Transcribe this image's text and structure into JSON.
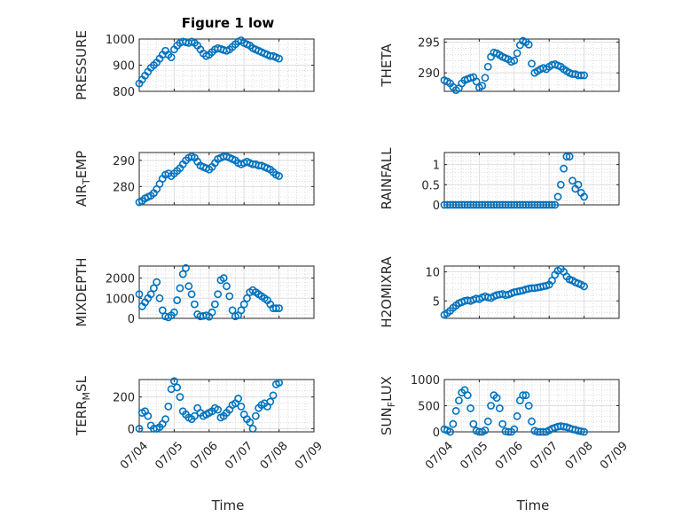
{
  "figure": {
    "title": "Figure 1 low",
    "xlabel": "Time"
  },
  "colors": {
    "marker": "#0072BD",
    "axis": "#262626",
    "grid_major": "#dedede",
    "grid_minor": "#c8c8c8"
  },
  "chart_data": [
    {
      "type": "scatter",
      "ylabel": "PRESSURE",
      "ylim": [
        800,
        1000
      ],
      "yticks": [
        "800",
        "900",
        "1000"
      ],
      "ytick_values": [
        800,
        900,
        1000
      ],
      "xlim": [
        "07/04",
        "07/09"
      ],
      "show_xticklabels": false,
      "grid": true,
      "marker": "circle",
      "x": [
        "07/04 00:00",
        "07/04 02:00",
        "07/04 04:00",
        "07/04 06:00",
        "07/04 08:00",
        "07/04 10:00",
        "07/04 12:00",
        "07/04 14:00",
        "07/04 16:00",
        "07/04 18:00",
        "07/04 20:00",
        "07/04 22:00",
        "07/05 00:00",
        "07/05 02:00",
        "07/05 04:00",
        "07/05 06:00",
        "07/05 08:00",
        "07/05 10:00",
        "07/05 12:00",
        "07/05 14:00",
        "07/05 16:00",
        "07/05 18:00",
        "07/05 20:00",
        "07/05 22:00",
        "07/06 00:00",
        "07/06 02:00",
        "07/06 04:00",
        "07/06 06:00",
        "07/06 08:00",
        "07/06 10:00",
        "07/06 12:00",
        "07/06 14:00",
        "07/06 16:00",
        "07/06 18:00",
        "07/06 20:00",
        "07/06 22:00",
        "07/07 00:00",
        "07/07 02:00",
        "07/07 04:00",
        "07/07 06:00",
        "07/07 08:00",
        "07/07 10:00",
        "07/07 12:00",
        "07/07 14:00",
        "07/07 16:00",
        "07/07 18:00",
        "07/07 20:00",
        "07/07 22:00",
        "07/08 00:00"
      ],
      "y": [
        830,
        845,
        860,
        875,
        890,
        900,
        910,
        925,
        940,
        955,
        940,
        930,
        960,
        975,
        985,
        990,
        988,
        985,
        990,
        985,
        975,
        960,
        945,
        935,
        940,
        950,
        960,
        965,
        962,
        958,
        955,
        960,
        970,
        980,
        990,
        995,
        985,
        980,
        975,
        965,
        960,
        955,
        950,
        945,
        940,
        935,
        935,
        930,
        925
      ]
    },
    {
      "type": "scatter",
      "ylabel": "THETA",
      "ylim": [
        287,
        295.5
      ],
      "yticks": [
        "290",
        "295"
      ],
      "ytick_values": [
        290,
        295
      ],
      "xlim": [
        "07/04",
        "07/09"
      ],
      "show_xticklabels": false,
      "grid": true,
      "marker": "circle",
      "x": [
        "07/04 00:00",
        "07/04 02:00",
        "07/04 04:00",
        "07/04 06:00",
        "07/04 08:00",
        "07/04 10:00",
        "07/04 12:00",
        "07/04 14:00",
        "07/04 16:00",
        "07/04 18:00",
        "07/04 20:00",
        "07/04 22:00",
        "07/05 00:00",
        "07/05 02:00",
        "07/05 04:00",
        "07/05 06:00",
        "07/05 08:00",
        "07/05 10:00",
        "07/05 12:00",
        "07/05 14:00",
        "07/05 16:00",
        "07/05 18:00",
        "07/05 20:00",
        "07/05 22:00",
        "07/06 00:00",
        "07/06 02:00",
        "07/06 04:00",
        "07/06 06:00",
        "07/06 08:00",
        "07/06 10:00",
        "07/06 12:00",
        "07/06 14:00",
        "07/06 16:00",
        "07/06 18:00",
        "07/06 20:00",
        "07/06 22:00",
        "07/07 00:00",
        "07/07 02:00",
        "07/07 04:00",
        "07/07 06:00",
        "07/07 08:00",
        "07/07 10:00",
        "07/07 12:00",
        "07/07 14:00",
        "07/07 16:00",
        "07/07 18:00",
        "07/07 20:00",
        "07/07 22:00",
        "07/08 00:00"
      ],
      "y": [
        288.8,
        288.6,
        288.3,
        287.7,
        287.2,
        287.5,
        288.3,
        288.8,
        289.0,
        289.2,
        289.3,
        288.6,
        287.6,
        287.9,
        289.2,
        291.0,
        292.6,
        293.3,
        293.2,
        292.9,
        292.6,
        292.4,
        292.2,
        291.8,
        292.0,
        293.2,
        294.5,
        295.2,
        295.0,
        294.6,
        291.5,
        290.0,
        290.3,
        290.6,
        290.8,
        290.6,
        291.0,
        291.3,
        291.4,
        291.2,
        291.0,
        290.6,
        290.3,
        290.0,
        289.8,
        289.8,
        289.6,
        289.6,
        289.6
      ]
    },
    {
      "type": "scatter",
      "ylabel": "AIR_TEMP",
      "ylabel_main": "AIR",
      "ylabel_sub": "T",
      "ylabel_rest": "EMP",
      "ylim": [
        273,
        293
      ],
      "yticks": [
        "280",
        "290"
      ],
      "ytick_values": [
        280,
        290
      ],
      "xlim": [
        "07/04",
        "07/09"
      ],
      "show_xticklabels": false,
      "grid": true,
      "marker": "circle",
      "x": [
        "07/04 00:00",
        "07/04 02:00",
        "07/04 04:00",
        "07/04 06:00",
        "07/04 08:00",
        "07/04 10:00",
        "07/04 12:00",
        "07/04 14:00",
        "07/04 16:00",
        "07/04 18:00",
        "07/04 20:00",
        "07/04 22:00",
        "07/05 00:00",
        "07/05 02:00",
        "07/05 04:00",
        "07/05 06:00",
        "07/05 08:00",
        "07/05 10:00",
        "07/05 12:00",
        "07/05 14:00",
        "07/05 16:00",
        "07/05 18:00",
        "07/05 20:00",
        "07/05 22:00",
        "07/06 00:00",
        "07/06 02:00",
        "07/06 04:00",
        "07/06 06:00",
        "07/06 08:00",
        "07/06 10:00",
        "07/06 12:00",
        "07/06 14:00",
        "07/06 16:00",
        "07/06 18:00",
        "07/06 20:00",
        "07/06 22:00",
        "07/07 00:00",
        "07/07 02:00",
        "07/07 04:00",
        "07/07 06:00",
        "07/07 08:00",
        "07/07 10:00",
        "07/07 12:00",
        "07/07 14:00",
        "07/07 16:00",
        "07/07 18:00",
        "07/07 20:00",
        "07/07 22:00",
        "07/08 00:00"
      ],
      "y": [
        274,
        274.5,
        275.5,
        276,
        276.5,
        277.5,
        279,
        281,
        283,
        284.5,
        285,
        284,
        285,
        286,
        287,
        288.5,
        290,
        291,
        291.5,
        291,
        289.5,
        288,
        287.5,
        287,
        286.5,
        287.5,
        289,
        290.5,
        291,
        291.5,
        291.5,
        291,
        290.5,
        290,
        289,
        288.5,
        289,
        289.5,
        289,
        288.5,
        288.5,
        288,
        288,
        287.5,
        287,
        286.5,
        285.5,
        284.5,
        284
      ]
    },
    {
      "type": "scatter",
      "ylabel": "RAINFALL",
      "ylim": [
        0,
        1.3
      ],
      "yticks": [
        "0",
        "0.5",
        "1"
      ],
      "ytick_values": [
        0,
        0.5,
        1
      ],
      "xlim": [
        "07/04",
        "07/09"
      ],
      "show_xticklabels": false,
      "grid": true,
      "marker": "circle",
      "x": [
        "07/04 00:00",
        "07/04 02:00",
        "07/04 04:00",
        "07/04 06:00",
        "07/04 08:00",
        "07/04 10:00",
        "07/04 12:00",
        "07/04 14:00",
        "07/04 16:00",
        "07/04 18:00",
        "07/04 20:00",
        "07/04 22:00",
        "07/05 00:00",
        "07/05 02:00",
        "07/05 04:00",
        "07/05 06:00",
        "07/05 08:00",
        "07/05 10:00",
        "07/05 12:00",
        "07/05 14:00",
        "07/05 16:00",
        "07/05 18:00",
        "07/05 20:00",
        "07/05 22:00",
        "07/06 00:00",
        "07/06 02:00",
        "07/06 04:00",
        "07/06 06:00",
        "07/06 08:00",
        "07/06 10:00",
        "07/06 12:00",
        "07/06 14:00",
        "07/06 16:00",
        "07/06 18:00",
        "07/06 20:00",
        "07/06 22:00",
        "07/07 00:00",
        "07/07 02:00",
        "07/07 04:00",
        "07/07 06:00",
        "07/07 08:00",
        "07/07 10:00",
        "07/07 12:00",
        "07/07 14:00",
        "07/07 16:00",
        "07/07 18:00",
        "07/07 20:00",
        "07/07 22:00",
        "07/08 00:00"
      ],
      "y": [
        0,
        0,
        0,
        0,
        0,
        0,
        0,
        0,
        0,
        0,
        0,
        0,
        0,
        0,
        0,
        0,
        0,
        0,
        0,
        0,
        0,
        0,
        0,
        0,
        0,
        0,
        0,
        0,
        0,
        0,
        0,
        0,
        0,
        0,
        0,
        0,
        0,
        0,
        0,
        0.2,
        0.5,
        0.9,
        1.2,
        1.2,
        0.6,
        0.4,
        0.5,
        0.3,
        0.2
      ]
    },
    {
      "type": "scatter",
      "ylabel": "MIXDEPTH",
      "ylim": [
        0,
        2600
      ],
      "yticks": [
        "0",
        "1000",
        "2000"
      ],
      "ytick_values": [
        0,
        1000,
        2000
      ],
      "xlim": [
        "07/04",
        "07/09"
      ],
      "show_xticklabels": false,
      "grid": true,
      "marker": "circle",
      "x": [
        "07/04 00:00",
        "07/04 02:00",
        "07/04 04:00",
        "07/04 06:00",
        "07/04 08:00",
        "07/04 10:00",
        "07/04 12:00",
        "07/04 14:00",
        "07/04 16:00",
        "07/04 18:00",
        "07/04 20:00",
        "07/04 22:00",
        "07/05 00:00",
        "07/05 02:00",
        "07/05 04:00",
        "07/05 06:00",
        "07/05 08:00",
        "07/05 10:00",
        "07/05 12:00",
        "07/05 14:00",
        "07/05 16:00",
        "07/05 18:00",
        "07/05 20:00",
        "07/05 22:00",
        "07/06 00:00",
        "07/06 02:00",
        "07/06 04:00",
        "07/06 06:00",
        "07/06 08:00",
        "07/06 10:00",
        "07/06 12:00",
        "07/06 14:00",
        "07/06 16:00",
        "07/06 18:00",
        "07/06 20:00",
        "07/06 22:00",
        "07/07 00:00",
        "07/07 02:00",
        "07/07 04:00",
        "07/07 06:00",
        "07/07 08:00",
        "07/07 10:00",
        "07/07 12:00",
        "07/07 14:00",
        "07/07 16:00",
        "07/07 18:00",
        "07/07 20:00",
        "07/07 22:00",
        "07/08 00:00"
      ],
      "y": [
        1200,
        600,
        800,
        1000,
        1200,
        1500,
        1800,
        1000,
        400,
        100,
        50,
        150,
        300,
        900,
        1500,
        2200,
        2500,
        1600,
        1200,
        700,
        200,
        100,
        120,
        150,
        80,
        300,
        700,
        1200,
        1900,
        2000,
        1600,
        1100,
        400,
        100,
        150,
        400,
        700,
        1000,
        1300,
        1400,
        1300,
        1200,
        1100,
        1000,
        900,
        700,
        500,
        500,
        500
      ]
    },
    {
      "type": "scatter",
      "ylabel": "H2OMIXRA",
      "ylim": [
        2,
        11
      ],
      "yticks": [
        "5",
        "10"
      ],
      "ytick_values": [
        5,
        10
      ],
      "xlim": [
        "07/04",
        "07/09"
      ],
      "show_xticklabels": false,
      "grid": true,
      "marker": "circle",
      "x": [
        "07/04 00:00",
        "07/04 02:00",
        "07/04 04:00",
        "07/04 06:00",
        "07/04 08:00",
        "07/04 10:00",
        "07/04 12:00",
        "07/04 14:00",
        "07/04 16:00",
        "07/04 18:00",
        "07/04 20:00",
        "07/04 22:00",
        "07/05 00:00",
        "07/05 02:00",
        "07/05 04:00",
        "07/05 06:00",
        "07/05 08:00",
        "07/05 10:00",
        "07/05 12:00",
        "07/05 14:00",
        "07/05 16:00",
        "07/05 18:00",
        "07/05 20:00",
        "07/05 22:00",
        "07/06 00:00",
        "07/06 02:00",
        "07/06 04:00",
        "07/06 06:00",
        "07/06 08:00",
        "07/06 10:00",
        "07/06 12:00",
        "07/06 14:00",
        "07/06 16:00",
        "07/06 18:00",
        "07/06 20:00",
        "07/06 22:00",
        "07/07 00:00",
        "07/07 02:00",
        "07/07 04:00",
        "07/07 06:00",
        "07/07 08:00",
        "07/07 10:00",
        "07/07 12:00",
        "07/07 14:00",
        "07/07 16:00",
        "07/07 18:00",
        "07/07 20:00",
        "07/07 22:00",
        "07/08 00:00"
      ],
      "y": [
        2.6,
        2.9,
        3.3,
        3.8,
        4.2,
        4.6,
        4.8,
        5.0,
        5.1,
        5.0,
        5.2,
        5.4,
        5.3,
        5.6,
        5.8,
        5.6,
        5.5,
        5.8,
        6.0,
        6.1,
        6.2,
        6.0,
        6.1,
        6.3,
        6.5,
        6.6,
        6.7,
        6.8,
        7.0,
        7.1,
        7.2,
        7.2,
        7.3,
        7.4,
        7.5,
        7.6,
        7.8,
        8.5,
        9.5,
        10.2,
        10.5,
        10.0,
        9.2,
        8.7,
        8.5,
        8.2,
        8.0,
        7.8,
        7.5
      ]
    },
    {
      "type": "scatter",
      "ylabel": "TERR_MSL",
      "ylabel_main": "TERR",
      "ylabel_sub": "M",
      "ylabel_rest": "SL",
      "ylim": [
        -20,
        310
      ],
      "yticks": [
        "0",
        "200"
      ],
      "ytick_values": [
        0,
        200
      ],
      "xlim": [
        "07/04",
        "07/09"
      ],
      "xticks": [
        "07/04",
        "07/05",
        "07/06",
        "07/07",
        "07/08",
        "07/09"
      ],
      "show_xticklabels": true,
      "grid": true,
      "marker": "circle",
      "x": [
        "07/04 00:00",
        "07/04 02:00",
        "07/04 04:00",
        "07/04 06:00",
        "07/04 08:00",
        "07/04 10:00",
        "07/04 12:00",
        "07/04 14:00",
        "07/04 16:00",
        "07/04 18:00",
        "07/04 20:00",
        "07/04 22:00",
        "07/05 00:00",
        "07/05 02:00",
        "07/05 04:00",
        "07/05 06:00",
        "07/05 08:00",
        "07/05 10:00",
        "07/05 12:00",
        "07/05 14:00",
        "07/05 16:00",
        "07/05 18:00",
        "07/05 20:00",
        "07/05 22:00",
        "07/06 00:00",
        "07/06 02:00",
        "07/06 04:00",
        "07/06 06:00",
        "07/06 08:00",
        "07/06 10:00",
        "07/06 12:00",
        "07/06 14:00",
        "07/06 16:00",
        "07/06 18:00",
        "07/06 20:00",
        "07/06 22:00",
        "07/07 00:00",
        "07/07 02:00",
        "07/07 04:00",
        "07/07 06:00",
        "07/07 08:00",
        "07/07 10:00",
        "07/07 12:00",
        "07/07 14:00",
        "07/07 16:00",
        "07/07 18:00",
        "07/07 20:00",
        "07/07 22:00",
        "07/08 00:00"
      ],
      "y": [
        0,
        100,
        110,
        80,
        20,
        0,
        0,
        10,
        30,
        60,
        140,
        250,
        300,
        260,
        200,
        110,
        90,
        70,
        60,
        80,
        130,
        100,
        80,
        90,
        100,
        110,
        130,
        120,
        70,
        80,
        100,
        120,
        150,
        160,
        190,
        140,
        90,
        60,
        40,
        0,
        80,
        130,
        150,
        160,
        140,
        170,
        210,
        280,
        290
      ]
    },
    {
      "type": "scatter",
      "ylabel": "SUN_FLUX",
      "ylabel_main": "SUN",
      "ylabel_sub": "F",
      "ylabel_rest": "LUX",
      "ylim": [
        0,
        1000
      ],
      "yticks": [
        "0",
        "500",
        "1000"
      ],
      "ytick_values": [
        0,
        500,
        1000
      ],
      "xlim": [
        "07/04",
        "07/09"
      ],
      "xticks": [
        "07/04",
        "07/05",
        "07/06",
        "07/07",
        "07/08",
        "07/09"
      ],
      "show_xticklabels": true,
      "grid": true,
      "marker": "circle",
      "x": [
        "07/04 00:00",
        "07/04 02:00",
        "07/04 04:00",
        "07/04 06:00",
        "07/04 08:00",
        "07/04 10:00",
        "07/04 12:00",
        "07/04 14:00",
        "07/04 16:00",
        "07/04 18:00",
        "07/04 20:00",
        "07/04 22:00",
        "07/05 00:00",
        "07/05 02:00",
        "07/05 04:00",
        "07/05 06:00",
        "07/05 08:00",
        "07/05 10:00",
        "07/05 12:00",
        "07/05 14:00",
        "07/05 16:00",
        "07/05 18:00",
        "07/05 20:00",
        "07/05 22:00",
        "07/06 00:00",
        "07/06 02:00",
        "07/06 04:00",
        "07/06 06:00",
        "07/06 08:00",
        "07/06 10:00",
        "07/06 12:00",
        "07/06 14:00",
        "07/06 16:00",
        "07/06 18:00",
        "07/06 20:00",
        "07/06 22:00",
        "07/07 00:00",
        "07/07 02:00",
        "07/07 04:00",
        "07/07 06:00",
        "07/07 08:00",
        "07/07 10:00",
        "07/07 12:00",
        "07/07 14:00",
        "07/07 16:00",
        "07/07 18:00",
        "07/07 20:00",
        "07/07 22:00",
        "07/08 00:00"
      ],
      "y": [
        50,
        30,
        0,
        150,
        400,
        600,
        750,
        800,
        700,
        450,
        150,
        20,
        0,
        0,
        30,
        200,
        500,
        700,
        650,
        450,
        150,
        10,
        0,
        0,
        50,
        300,
        600,
        700,
        700,
        500,
        200,
        20,
        0,
        0,
        0,
        0,
        30,
        60,
        80,
        100,
        110,
        100,
        90,
        70,
        50,
        40,
        20,
        10,
        0
      ]
    }
  ]
}
